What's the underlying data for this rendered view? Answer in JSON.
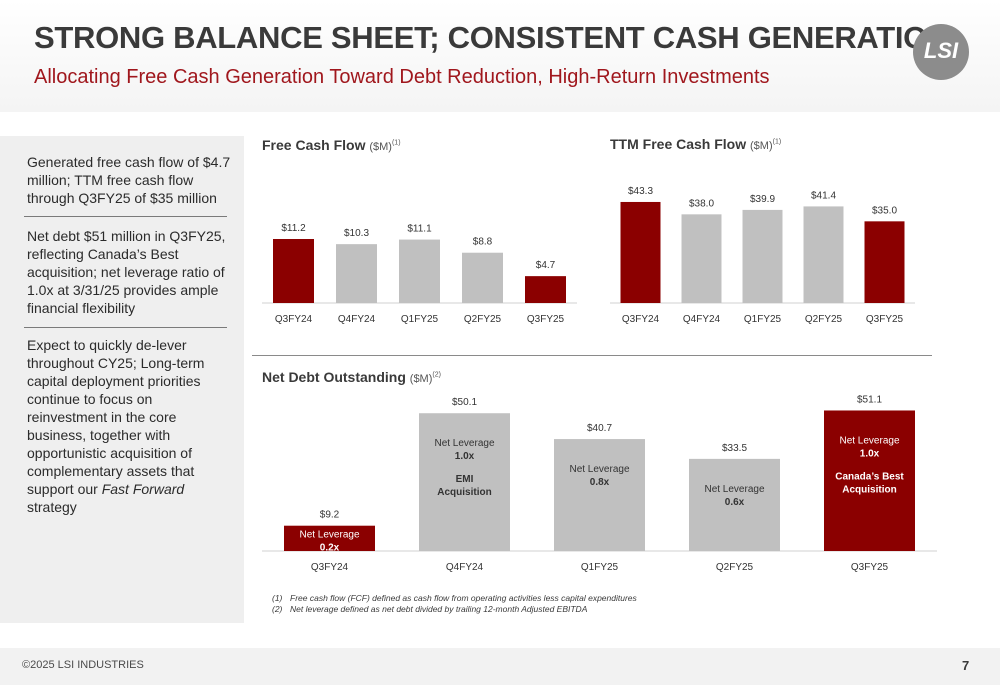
{
  "header": {
    "title": "STRONG BALANCE SHEET; CONSISTENT CASH GENERATION",
    "subtitle": "Allocating Free Cash Generation Toward Debt Reduction, High-Return Investments",
    "logo_text": "LSI"
  },
  "sidebar": {
    "points": [
      "Generated free cash flow of $4.7 million; TTM free cash flow through Q3FY25 of $35 million",
      "Net debt $51 million in Q3FY25, reflecting Canada’s Best acquisition; net leverage ratio of 1.0x at 3/31/25 provides ample financial flexibility",
      "Expect to quickly de-lever throughout CY25; Long-term capital deployment priorities continue to focus on reinvestment in the core business, together with opportunistic acquisition of complementary assets that support our ",
      "Fast Forward",
      " strategy"
    ]
  },
  "colors": {
    "accent": "#8b0000",
    "neutral": "#c0c0c0",
    "subtitle": "#a0171d"
  },
  "chart_data": [
    {
      "type": "bar",
      "title": "Free Cash Flow",
      "unit": "($M)",
      "footnote_ref": "(1)",
      "categories": [
        "Q3FY24",
        "Q4FY24",
        "Q1FY25",
        "Q2FY25",
        "Q3FY25"
      ],
      "values": [
        11.2,
        10.3,
        11.1,
        8.8,
        4.7
      ],
      "labels": [
        "$11.2",
        "$10.3",
        "$11.1",
        "$8.8",
        "$4.7"
      ],
      "highlight": [
        true,
        false,
        false,
        false,
        true
      ],
      "ylim": [
        0,
        14
      ]
    },
    {
      "type": "bar",
      "title": "TTM Free Cash Flow",
      "unit": "($M)",
      "footnote_ref": "(1)",
      "categories": [
        "Q3FY24",
        "Q4FY24",
        "Q1FY25",
        "Q2FY25",
        "Q3FY25"
      ],
      "values": [
        43.3,
        38.0,
        39.9,
        41.4,
        35.0
      ],
      "labels": [
        "$43.3",
        "$38.0",
        "$39.9",
        "$41.4",
        "$35.0"
      ],
      "highlight": [
        true,
        false,
        false,
        false,
        true
      ],
      "ylim": [
        0,
        48
      ]
    },
    {
      "type": "bar",
      "title": "Net Debt Outstanding",
      "unit": "($M)",
      "footnote_ref": "(2)",
      "categories": [
        "Q3FY24",
        "Q4FY24",
        "Q1FY25",
        "Q2FY25",
        "Q3FY25"
      ],
      "values": [
        9.2,
        50.1,
        40.7,
        33.5,
        51.1
      ],
      "labels": [
        "$9.2",
        "$50.1",
        "$40.7",
        "$33.5",
        "$51.1"
      ],
      "highlight": [
        true,
        false,
        false,
        false,
        true
      ],
      "annotations": [
        {
          "line1": "Net Leverage",
          "line2": "0.2x",
          "extra": []
        },
        {
          "line1": "Net Leverage",
          "line2": "1.0x",
          "extra": [
            "EMI",
            "Acquisition"
          ]
        },
        {
          "line1": "Net Leverage",
          "line2": "0.8x",
          "extra": []
        },
        {
          "line1": "Net Leverage",
          "line2": "0.6x",
          "extra": []
        },
        {
          "line1": "Net Leverage",
          "line2": "1.0x",
          "extra": [
            "Canada’s Best",
            "Acquisition"
          ]
        }
      ],
      "ylim": [
        0,
        52
      ]
    }
  ],
  "footnotes": [
    {
      "num": "(1)",
      "text": "Free cash flow (FCF) defined as cash flow from operating activities less capital expenditures"
    },
    {
      "num": "(2)",
      "text": "Net leverage defined as net debt divided by trailing 12-month Adjusted EBITDA"
    }
  ],
  "footer": {
    "copyright": "©2025 LSI INDUSTRIES",
    "page": "7"
  }
}
